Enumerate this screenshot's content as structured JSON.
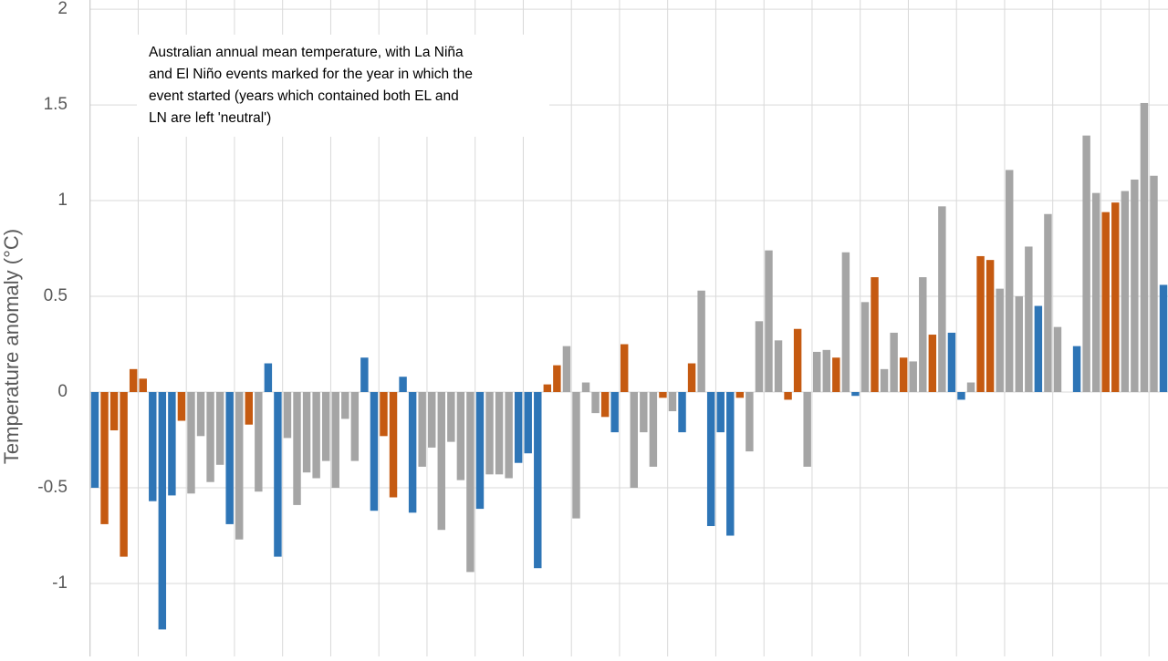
{
  "chart_data": {
    "type": "bar",
    "y_label": "Temperature anomaly (°C)",
    "annotation": [
      "Australian annual mean temperature, with La Niña",
      "and El Niño events marked for the year in which the",
      "event started (years which contained both EL and",
      "LN are left 'neutral')"
    ],
    "categories": [
      null,
      null,
      null,
      null,
      null,
      null,
      null,
      null,
      null,
      null,
      null,
      null,
      null,
      null,
      null,
      null,
      null,
      null,
      null,
      null,
      null,
      null,
      null,
      null,
      null,
      null,
      null,
      null,
      null,
      null,
      null,
      null,
      null,
      null,
      null,
      null,
      null,
      null,
      null,
      null,
      null,
      null,
      null,
      null,
      null,
      null,
      null,
      null,
      null,
      null,
      null,
      null,
      null,
      null,
      null,
      null,
      null,
      null,
      null,
      null,
      null,
      null,
      null,
      null,
      null,
      null,
      null,
      null,
      null,
      null,
      null,
      null,
      null,
      null,
      null,
      null,
      null,
      null,
      null,
      null,
      null,
      null,
      null,
      null,
      null,
      null,
      null,
      null,
      null,
      null,
      null,
      null,
      null,
      null,
      null,
      null,
      null,
      null,
      null,
      null,
      null,
      null,
      null,
      null,
      null,
      null,
      null,
      null,
      null,
      null,
      null,
      null
    ],
    "values": [
      -0.5,
      -0.69,
      -0.2,
      -0.86,
      0.12,
      0.07,
      -0.57,
      -1.24,
      -0.54,
      -0.15,
      -0.53,
      -0.23,
      -0.47,
      -0.38,
      -0.69,
      -0.77,
      -0.17,
      -0.52,
      0.15,
      -0.86,
      -0.24,
      -0.59,
      -0.42,
      -0.45,
      -0.36,
      -0.5,
      -0.14,
      -0.36,
      0.18,
      -0.62,
      -0.23,
      -0.55,
      0.08,
      -0.63,
      -0.39,
      -0.29,
      -0.72,
      -0.26,
      -0.46,
      -0.94,
      -0.61,
      -0.43,
      -0.43,
      -0.45,
      -0.37,
      -0.32,
      -0.92,
      0.04,
      0.14,
      0.24,
      -0.66,
      0.05,
      -0.11,
      -0.13,
      -0.21,
      0.25,
      -0.5,
      -0.21,
      -0.39,
      -0.03,
      -0.1,
      -0.21,
      0.15,
      0.53,
      -0.7,
      -0.21,
      -0.75,
      -0.03,
      -0.31,
      0.37,
      0.74,
      0.27,
      -0.04,
      0.33,
      -0.39,
      0.21,
      0.22,
      0.18,
      0.73,
      -0.02,
      0.47,
      0.6,
      0.12,
      0.31,
      0.18,
      0.16,
      0.6,
      0.3,
      0.97,
      0.31,
      -0.04,
      0.05,
      0.71,
      0.69,
      0.54,
      1.16,
      0.5,
      0.76,
      0.45,
      0.93,
      0.34,
      0,
      0.24,
      1.34,
      1.04,
      0.94,
      0.99,
      1.05,
      1.11,
      1.51,
      1.13,
      0.56
    ],
    "colors": [
      "#2e75b6",
      "#c55a11",
      "#c55a11",
      "#c55a11",
      "#c55a11",
      "#c55a11",
      "#2e75b6",
      "#2e75b6",
      "#2e75b6",
      "#c55a11",
      "#a5a5a5",
      "#a5a5a5",
      "#a5a5a5",
      "#a5a5a5",
      "#2e75b6",
      "#a5a5a5",
      "#c55a11",
      "#a5a5a5",
      "#2e75b6",
      "#2e75b6",
      "#a5a5a5",
      "#a5a5a5",
      "#a5a5a5",
      "#a5a5a5",
      "#a5a5a5",
      "#a5a5a5",
      "#a5a5a5",
      "#a5a5a5",
      "#2e75b6",
      "#2e75b6",
      "#c55a11",
      "#c55a11",
      "#2e75b6",
      "#2e75b6",
      "#a5a5a5",
      "#a5a5a5",
      "#a5a5a5",
      "#a5a5a5",
      "#a5a5a5",
      "#a5a5a5",
      "#2e75b6",
      "#a5a5a5",
      "#a5a5a5",
      "#a5a5a5",
      "#2e75b6",
      "#2e75b6",
      "#2e75b6",
      "#c55a11",
      "#c55a11",
      "#a5a5a5",
      "#a5a5a5",
      "#a5a5a5",
      "#a5a5a5",
      "#c55a11",
      "#2e75b6",
      "#c55a11",
      "#a5a5a5",
      "#a5a5a5",
      "#a5a5a5",
      "#c55a11",
      "#a5a5a5",
      "#2e75b6",
      "#c55a11",
      "#a5a5a5",
      "#2e75b6",
      "#2e75b6",
      "#2e75b6",
      "#c55a11",
      "#a5a5a5",
      "#a5a5a5",
      "#a5a5a5",
      "#a5a5a5",
      "#c55a11",
      "#c55a11",
      "#a5a5a5",
      "#a5a5a5",
      "#a5a5a5",
      "#c55a11",
      "#a5a5a5",
      "#2e75b6",
      "#a5a5a5",
      "#c55a11",
      "#a5a5a5",
      "#a5a5a5",
      "#c55a11",
      "#a5a5a5",
      "#a5a5a5",
      "#c55a11",
      "#a5a5a5",
      "#2e75b6",
      "#2e75b6",
      "#a5a5a5",
      "#c55a11",
      "#c55a11",
      "#a5a5a5",
      "#a5a5a5",
      "#a5a5a5",
      "#a5a5a5",
      "#2e75b6",
      "#a5a5a5",
      "#a5a5a5",
      "#a5a5a5",
      "#2e75b6",
      "#a5a5a5",
      "#a5a5a5",
      "#c55a11",
      "#c55a11",
      "#a5a5a5",
      "#a5a5a5",
      "#a5a5a5",
      "#a5a5a5",
      "#2e75b6"
    ],
    "ylim": [
      -1.381,
      2.048
    ],
    "yticks": [
      -1,
      -0.5,
      0,
      0.5,
      1,
      1.5,
      2
    ],
    "grid": true
  }
}
